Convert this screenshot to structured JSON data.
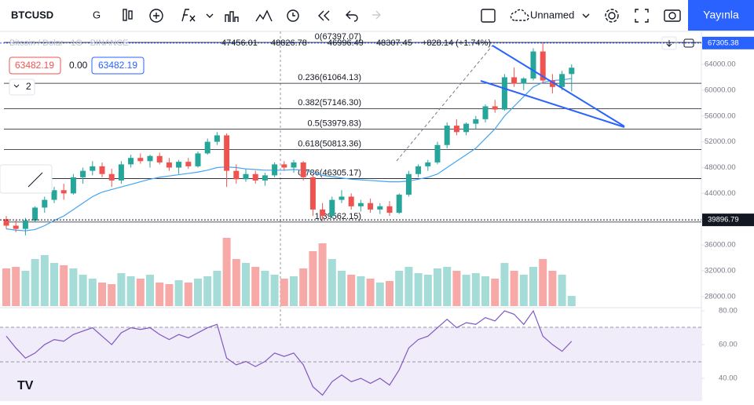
{
  "toolbar": {
    "symbol": "BTCUSD",
    "interval": "G",
    "layout_name": "Unnamed",
    "publish": "Yayınla"
  },
  "legend": {
    "title": "Bitcoin / Dolar · 1G · BINANCE",
    "open": 47456.01,
    "high": 48826.78,
    "low": 46996.49,
    "close": 48307.45,
    "change": "+828.14 (+1.74%)"
  },
  "price_boxes": {
    "bid": 63482.19,
    "spread": "0.00",
    "ask": 63482.19,
    "indicators": 2
  },
  "chart": {
    "ylim": [
      26530,
      69110
    ],
    "yticks": [
      {
        "value": 64000,
        "label": "64000.00"
      },
      {
        "value": 60000,
        "label": "60000.00"
      },
      {
        "value": 56000,
        "label": "56000.00"
      },
      {
        "value": 52000,
        "label": "52000.00"
      },
      {
        "value": 48000,
        "label": "48000.00"
      },
      {
        "value": 44000,
        "label": "44000.00"
      },
      {
        "value": 36000,
        "label": "36000.00"
      },
      {
        "value": 32000,
        "label": "32000.00"
      },
      {
        "value": 28000,
        "label": "28000.00"
      }
    ],
    "badges": [
      {
        "value": 67305.38,
        "color": "#2962ff"
      },
      {
        "value": 39896.79,
        "color": "#131722"
      }
    ],
    "fib": [
      {
        "label": "0(67397.07)",
        "value": 67397.07
      },
      {
        "label": "0.236(61064.13)",
        "value": 61064.13
      },
      {
        "label": "0.382(57146.30)",
        "value": 57146.3
      },
      {
        "label": "0.5(53979.83)",
        "value": 53979.83
      },
      {
        "label": "0.618(50813.36)",
        "value": 50813.36
      },
      {
        "label": "0.786(46305.17)",
        "value": 46305.17
      },
      {
        "label": "1(39562.15)",
        "value": 39562.15
      }
    ],
    "candles": [
      [
        40000,
        40500,
        38500,
        39000
      ],
      [
        39000,
        39800,
        38000,
        38500
      ],
      [
        38500,
        40200,
        37500,
        39800
      ],
      [
        39800,
        42000,
        39500,
        41800
      ],
      [
        41800,
        43500,
        41000,
        43000
      ],
      [
        43000,
        45000,
        42500,
        44500
      ],
      [
        44500,
        45500,
        43000,
        44000
      ],
      [
        44000,
        47000,
        43800,
        46500
      ],
      [
        46500,
        48000,
        45500,
        47500
      ],
      [
        47500,
        49000,
        46800,
        48200
      ],
      [
        48200,
        48800,
        46500,
        47000
      ],
      [
        47000,
        47800,
        45000,
        46000
      ],
      [
        46000,
        49000,
        45500,
        48500
      ],
      [
        48500,
        50000,
        48000,
        49500
      ],
      [
        49500,
        50200,
        48600,
        49000
      ],
      [
        49000,
        50000,
        48000,
        49800
      ],
      [
        49800,
        50300,
        48500,
        48800
      ],
      [
        48800,
        49500,
        47500,
        48000
      ],
      [
        48000,
        49200,
        47000,
        48900
      ],
      [
        48900,
        49500,
        47800,
        48200
      ],
      [
        48200,
        50500,
        48000,
        50200
      ],
      [
        50200,
        52500,
        50000,
        52000
      ],
      [
        52000,
        53500,
        51500,
        53000
      ],
      [
        53000,
        53300,
        45000,
        47500
      ],
      [
        47500,
        48500,
        45500,
        46200
      ],
      [
        46200,
        47800,
        45800,
        47000
      ],
      [
        47000,
        47500,
        45500,
        46000
      ],
      [
        46000,
        47200,
        45200,
        46800
      ],
      [
        46800,
        48800,
        46500,
        48500
      ],
      [
        48500,
        49000,
        47500,
        48000
      ],
      [
        48000,
        49200,
        47200,
        48800
      ],
      [
        48800,
        49000,
        46000,
        46500
      ],
      [
        46500,
        47000,
        40500,
        41500
      ],
      [
        41500,
        42500,
        39800,
        40500
      ],
      [
        40500,
        43500,
        40200,
        43000
      ],
      [
        43000,
        44500,
        42500,
        43500
      ],
      [
        43500,
        44000,
        41500,
        42000
      ],
      [
        42000,
        43000,
        41200,
        42500
      ],
      [
        42500,
        43200,
        41000,
        41500
      ],
      [
        41500,
        42500,
        40800,
        42000
      ],
      [
        42000,
        42800,
        40500,
        41000
      ],
      [
        41000,
        44000,
        40800,
        43800
      ],
      [
        43800,
        47500,
        43500,
        47000
      ],
      [
        47000,
        48500,
        46500,
        48200
      ],
      [
        48200,
        49200,
        47500,
        48800
      ],
      [
        48800,
        52000,
        48500,
        51500
      ],
      [
        51500,
        55000,
        51000,
        54500
      ],
      [
        54500,
        55500,
        53000,
        53500
      ],
      [
        53500,
        55000,
        53000,
        54800
      ],
      [
        54800,
        56000,
        54000,
        55500
      ],
      [
        55500,
        57800,
        55000,
        57500
      ],
      [
        57500,
        58500,
        56500,
        57000
      ],
      [
        57000,
        62500,
        56800,
        62000
      ],
      [
        62000,
        63500,
        60500,
        61000
      ],
      [
        61000,
        62000,
        60000,
        61800
      ],
      [
        61800,
        66500,
        61500,
        66000
      ],
      [
        66000,
        67300,
        61000,
        61500
      ],
      [
        61500,
        62500,
        59500,
        60500
      ],
      [
        60500,
        63000,
        60000,
        62500
      ],
      [
        62500,
        64000,
        59800,
        63482
      ]
    ],
    "ma": [
      38500,
      38300,
      38200,
      38400,
      39000,
      39800,
      40500,
      41500,
      42500,
      43500,
      44200,
      44600,
      45000,
      45400,
      45800,
      46200,
      46500,
      46700,
      46900,
      47100,
      47300,
      47600,
      48000,
      48100,
      48000,
      47800,
      47700,
      47600,
      47600,
      47600,
      47700,
      47600,
      47200,
      46800,
      46600,
      46400,
      46200,
      46100,
      46000,
      45900,
      45800,
      45800,
      45900,
      46200,
      46500,
      47000,
      48000,
      49000,
      50000,
      51000,
      52500,
      54000,
      56000,
      57500,
      59000,
      60500,
      61200,
      61500,
      61600,
      61800
    ],
    "volume": [
      48,
      50,
      45,
      60,
      65,
      55,
      52,
      48,
      40,
      35,
      30,
      28,
      42,
      38,
      35,
      40,
      30,
      28,
      33,
      30,
      35,
      38,
      45,
      87,
      60,
      55,
      50,
      45,
      40,
      35,
      38,
      48,
      70,
      80,
      60,
      45,
      40,
      38,
      35,
      30,
      32,
      45,
      50,
      42,
      40,
      48,
      50,
      45,
      40,
      42,
      38,
      35,
      55,
      45,
      40,
      50,
      60,
      45,
      40,
      13
    ],
    "ylim_volume": [
      0,
      100
    ],
    "rsi": [
      65,
      58,
      52,
      55,
      60,
      63,
      62,
      66,
      68,
      70,
      65,
      60,
      67,
      70,
      69,
      70,
      66,
      63,
      66,
      64,
      67,
      70,
      72,
      52,
      48,
      50,
      47,
      50,
      55,
      53,
      55,
      48,
      35,
      30,
      38,
      42,
      38,
      40,
      37,
      40,
      36,
      45,
      58,
      63,
      65,
      70,
      75,
      70,
      73,
      72,
      76,
      74,
      80,
      78,
      72,
      80,
      65,
      60,
      56,
      62
    ],
    "rsi_ylim": [
      29.3,
      81.9
    ],
    "rsi_ticks": [
      {
        "value": 80,
        "label": "80.00"
      },
      {
        "value": 60,
        "label": "60.00"
      },
      {
        "value": 40,
        "label": "40.00"
      }
    ]
  }
}
